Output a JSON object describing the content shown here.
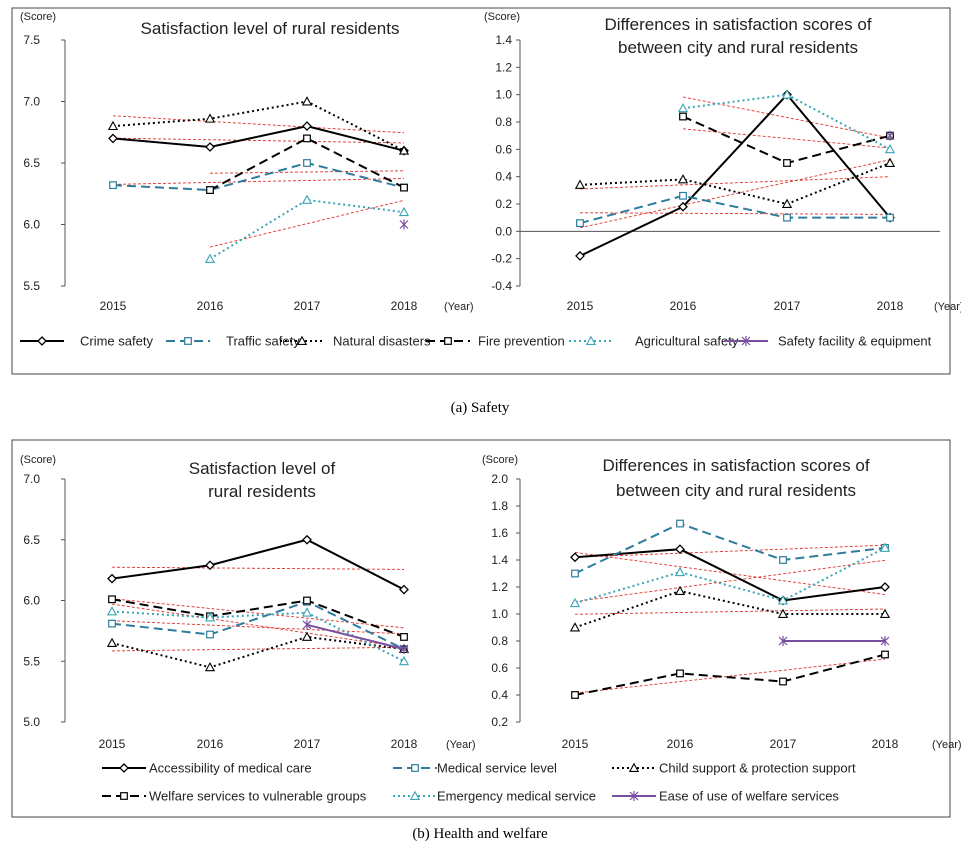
{
  "figure_a": {
    "caption": "(a)  Safety",
    "legend": [
      {
        "label": "Crime safety",
        "color": "#000000",
        "dash": "solid",
        "marker": "diamond"
      },
      {
        "label": "Traffic safety",
        "color": "#2e7c9c",
        "dash": "dash",
        "marker": "square"
      },
      {
        "label": "Natural disasters",
        "color": "#000000",
        "dash": "dot",
        "marker": "triangle"
      },
      {
        "label": "Fire prevention",
        "color": "#000000",
        "dash": "dash",
        "marker": "square"
      },
      {
        "label": "Agricultural safety",
        "color": "#3aa5b5",
        "dash": "dot",
        "marker": "triangle"
      },
      {
        "label": "Safety facility & equipment",
        "color": "#7a4fa0",
        "dash": "solid",
        "marker": "asterisk"
      }
    ]
  },
  "figure_b": {
    "caption": "(b)  Health and welfare",
    "legend": [
      {
        "label": "Accessibility of medical care",
        "color": "#000000",
        "dash": "solid",
        "marker": "diamond"
      },
      {
        "label": "Medical service level",
        "color": "#2e7c9c",
        "dash": "dash",
        "marker": "square"
      },
      {
        "label": "Child support  & protection support",
        "color": "#000000",
        "dash": "dot",
        "marker": "triangle"
      },
      {
        "label": "Welfare services to vulnerable groups",
        "color": "#000000",
        "dash": "dash",
        "marker": "square"
      },
      {
        "label": "Emergency medical service",
        "color": "#3aa5b5",
        "dash": "dot",
        "marker": "triangle"
      },
      {
        "label": "Ease of use of welfare services",
        "color": "#7a4fa0",
        "dash": "solid",
        "marker": "asterisk"
      }
    ]
  },
  "chart_data": [
    {
      "id": "a_left",
      "type": "line",
      "title": [
        "Satisfaction level of rural residents"
      ],
      "ylabel": "(Score)",
      "xunit": "(Year)",
      "categories": [
        "2015",
        "2016",
        "2017",
        "2018"
      ],
      "ylim": [
        5.5,
        7.5
      ],
      "yticks": [
        "5.5",
        "6.0",
        "6.5",
        "7.0",
        "7.5"
      ],
      "trendlines": true,
      "series": [
        {
          "name": "Crime safety",
          "values": [
            6.7,
            6.63,
            6.8,
            6.6
          ]
        },
        {
          "name": "Traffic safety",
          "values": [
            6.32,
            6.28,
            6.5,
            6.3
          ]
        },
        {
          "name": "Natural disasters",
          "values": [
            6.8,
            6.86,
            7.0,
            6.6
          ]
        },
        {
          "name": "Fire prevention",
          "values": [
            null,
            6.28,
            6.7,
            6.3
          ]
        },
        {
          "name": "Agricultural safety",
          "values": [
            null,
            5.72,
            6.2,
            6.1
          ]
        },
        {
          "name": "Safety facility & equipment",
          "values": [
            null,
            null,
            null,
            6.0
          ]
        }
      ]
    },
    {
      "id": "a_right",
      "type": "line",
      "title": [
        "Differences in satisfaction scores of",
        "between city and rural residents"
      ],
      "ylabel": "(Score)",
      "xunit": "(Year)",
      "categories": [
        "2015",
        "2016",
        "2017",
        "2018"
      ],
      "ylim": [
        -0.4,
        1.4
      ],
      "yticks": [
        "-0.4",
        "-0.2",
        "0.0",
        "0.2",
        "0.4",
        "0.6",
        "0.8",
        "1.0",
        "1.2",
        "1.4"
      ],
      "zero_line": true,
      "trendlines": true,
      "series": [
        {
          "name": "Crime safety",
          "values": [
            -0.18,
            0.18,
            1.0,
            0.1
          ]
        },
        {
          "name": "Traffic safety",
          "values": [
            0.06,
            0.26,
            0.1,
            0.1
          ]
        },
        {
          "name": "Natural disasters",
          "values": [
            0.34,
            0.38,
            0.2,
            0.5
          ]
        },
        {
          "name": "Fire prevention",
          "values": [
            null,
            0.84,
            0.5,
            0.7
          ]
        },
        {
          "name": "Agricultural safety",
          "values": [
            null,
            0.9,
            1.0,
            0.6
          ]
        },
        {
          "name": "Safety facility & equipment",
          "values": [
            null,
            null,
            null,
            0.7
          ]
        }
      ]
    },
    {
      "id": "b_left",
      "type": "line",
      "title": [
        "Satisfaction level of",
        "rural residents"
      ],
      "ylabel": "(Score)",
      "xunit": "(Year)",
      "categories": [
        "2015",
        "2016",
        "2017",
        "2018"
      ],
      "ylim": [
        5.0,
        7.0
      ],
      "yticks": [
        "5.0",
        "5.5",
        "6.0",
        "6.5",
        "7.0"
      ],
      "trendlines": true,
      "series": [
        {
          "name": "Accessibility of medical care",
          "values": [
            6.18,
            6.29,
            6.5,
            6.09
          ]
        },
        {
          "name": "Medical service level",
          "values": [
            5.81,
            5.72,
            5.99,
            5.6
          ]
        },
        {
          "name": "Child support  & protection support",
          "values": [
            5.65,
            5.45,
            5.7,
            5.6
          ]
        },
        {
          "name": "Welfare services to vulnerable groups",
          "values": [
            6.01,
            5.87,
            6.0,
            5.7
          ]
        },
        {
          "name": "Emergency medical service",
          "values": [
            5.91,
            5.86,
            5.9,
            5.5
          ]
        },
        {
          "name": "Ease of use of welfare services",
          "values": [
            null,
            null,
            5.8,
            5.6
          ]
        }
      ]
    },
    {
      "id": "b_right",
      "type": "line",
      "title": [
        "Differences in satisfaction scores of",
        "between city and rural residents"
      ],
      "ylabel": "(Score)",
      "xunit": "(Year)",
      "categories": [
        "2015",
        "2016",
        "2017",
        "2018"
      ],
      "ylim": [
        0.2,
        2.0
      ],
      "yticks": [
        "0.2",
        "0.4",
        "0.6",
        "0.8",
        "1.0",
        "1.2",
        "1.4",
        "1.6",
        "1.8",
        "2.0"
      ],
      "trendlines": true,
      "series": [
        {
          "name": "Accessibility of medical care",
          "values": [
            1.42,
            1.48,
            1.1,
            1.2
          ]
        },
        {
          "name": "Medical service level",
          "values": [
            1.3,
            1.67,
            1.4,
            1.49
          ]
        },
        {
          "name": "Child support  & protection support",
          "values": [
            0.9,
            1.17,
            1.0,
            1.0
          ]
        },
        {
          "name": "Welfare services to vulnerable groups",
          "values": [
            0.4,
            0.56,
            0.5,
            0.7
          ]
        },
        {
          "name": "Emergency medical service",
          "values": [
            1.08,
            1.31,
            1.1,
            1.49
          ]
        },
        {
          "name": "Ease of use of welfare services",
          "values": [
            null,
            null,
            0.8,
            0.8
          ]
        }
      ]
    }
  ]
}
